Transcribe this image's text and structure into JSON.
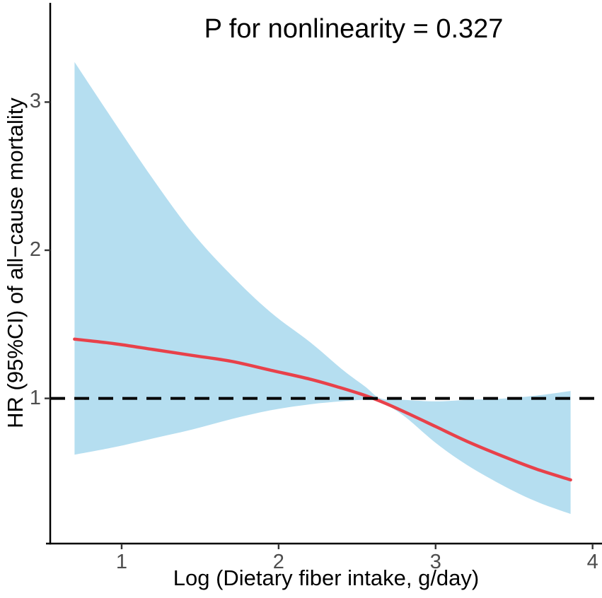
{
  "title": "P for nonlinearity = 0.327",
  "axes": {
    "x": {
      "label": "Log (Dietary fiber intake, g/day)",
      "ticks": [
        1,
        2,
        3,
        4
      ]
    },
    "y": {
      "label": "HR (95%CI) of all−cause mortality",
      "ticks": [
        1,
        2,
        3
      ]
    }
  },
  "colors": {
    "band": "#b5def0",
    "curve": "#e8414a",
    "reference_line": "#000000",
    "axis_line": "#000000",
    "tick_mark": "#333333",
    "tick_label": "#4d4d4d",
    "background": "#ffffff"
  },
  "chart_data": {
    "type": "line",
    "title": "P for nonlinearity = 0.327",
    "xlabel": "Log (Dietary fiber intake, g/day)",
    "ylabel": "HR (95%CI) of all−cause mortality",
    "xlim": [
      0.545,
      4.06
    ],
    "ylim": [
      0.02,
      3.67
    ],
    "x_ticks": [
      1,
      2,
      3,
      4
    ],
    "y_ticks": [
      1,
      2,
      3
    ],
    "grid": false,
    "legend": false,
    "x": [
      0.7,
      0.95,
      1.2,
      1.45,
      1.7,
      1.95,
      2.2,
      2.4,
      2.55,
      2.65,
      2.8,
      3.0,
      3.2,
      3.45,
      3.65,
      3.86
    ],
    "series": [
      {
        "name": "HR estimate",
        "values": [
          1.4,
          1.37,
          1.33,
          1.29,
          1.25,
          1.19,
          1.13,
          1.07,
          1.02,
          0.98,
          0.91,
          0.81,
          0.71,
          0.6,
          0.52,
          0.45
        ]
      },
      {
        "name": "95% CI upper",
        "values": [
          3.27,
          2.87,
          2.48,
          2.12,
          1.83,
          1.58,
          1.38,
          1.2,
          1.08,
          1.0,
          0.99,
          0.98,
          0.99,
          1.0,
          1.02,
          1.05
        ]
      },
      {
        "name": "95% CI lower",
        "values": [
          0.62,
          0.67,
          0.73,
          0.79,
          0.86,
          0.92,
          0.96,
          0.98,
          0.99,
          0.975,
          0.88,
          0.7,
          0.55,
          0.4,
          0.3,
          0.22
        ]
      }
    ],
    "reference_line_y": 1,
    "annotations": [
      "P for nonlinearity = 0.327"
    ]
  }
}
